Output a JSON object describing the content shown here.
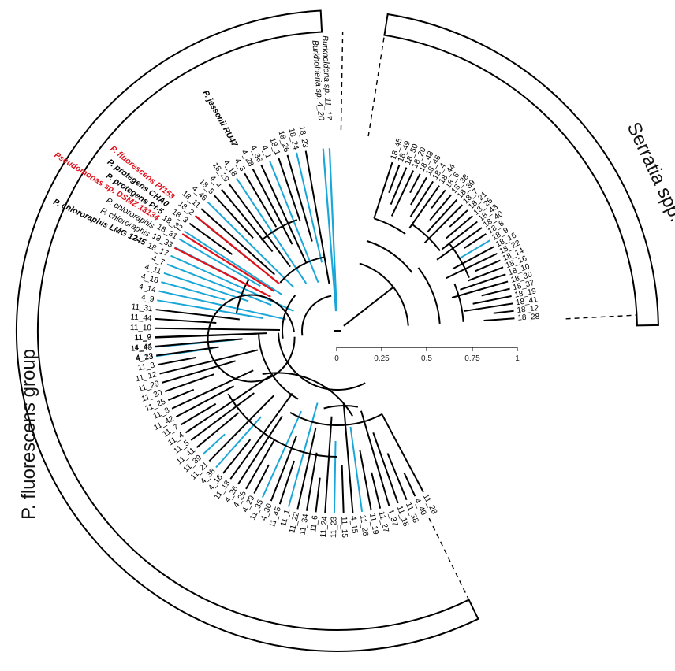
{
  "clades": {
    "serratia_label": "Serratia spp.",
    "pfluorescens_label": "P. fluorescens group"
  },
  "scale_bar": {
    "ticks": [
      "0",
      "0.25",
      "0.5",
      "0.75",
      "1"
    ]
  },
  "colors": {
    "branch_default": "#000000",
    "branch_highlight_blue": "#1aa7d8",
    "branch_highlight_red": "#e0121c",
    "label_red": "#e0121c"
  },
  "named_taxa": {
    "burkholderia_1": "Burkholderia sp. 4_20",
    "burkholderia_2": "Burkholderia sp. 11_17",
    "p_jessenii": "P. jessenii RU47",
    "p_fluorescens": "P. fluorescens Pf153",
    "p_protegens_cha0": "P. protegens CHA0",
    "p_protegens_pf5": "P. protegens Pf-5",
    "pseudomonas_dsmz": "Pseudomonas sp. DSMZ 13134",
    "p_chlororaphis_1": "P. chlororaphis",
    "p_chlororaphis_2": "P. chlororaphis",
    "p_chlororaphis_lmg": "P. chlororaphis LMG 1245"
  },
  "serratia_leaves": [
    "18_45",
    "18_49",
    "18_50",
    "18_20",
    "18_48",
    "18_46",
    "18_4",
    "18_44",
    "18_6",
    "18_38",
    "18_39",
    "18_7",
    "18_21",
    "18_25",
    "18_43",
    "18_40",
    "18_8",
    "18_9",
    "18_16",
    "18_22",
    "18_14",
    "18_16",
    "18_10",
    "18_30",
    "18_37",
    "18_19",
    "18_41",
    "18_12",
    "18_28"
  ],
  "pseudomonas_leaves_upper": [
    "18_23",
    "18_24",
    "18_26",
    "18_1",
    "4_1",
    "4_36",
    "4_28",
    "4_3",
    "4_18",
    "18_29",
    "4_4",
    "18_5",
    "4_46",
    "18_11",
    "18_2",
    "18_3",
    "18_32",
    "18_31",
    "18_33",
    "18_17",
    "4_7",
    "4_11",
    "4_18",
    "4_14",
    "4_9",
    "11_31",
    "11_44",
    "11_10",
    "11_9",
    "11_43",
    "4_23"
  ],
  "pseudomonas_leaves_lower": [
    "11_2",
    "4_44",
    "4_13",
    "11_3",
    "11_12",
    "11_29",
    "11_20",
    "11_25",
    "11_8",
    "11_42",
    "11_7",
    "11_4",
    "11_5",
    "11_41",
    "11_39",
    "11_21",
    "4_38",
    "4_16",
    "11_13",
    "4_26",
    "4_25",
    "4_29",
    "11_35",
    "4_30",
    "11_45",
    "11_1",
    "11_22",
    "11_34",
    "11_6",
    "11_24",
    "11_23",
    "11_15",
    "4_15",
    "11_26",
    "11_19",
    "11_27",
    "4_37",
    "11_18",
    "11_38",
    "4_40",
    "11_28"
  ]
}
